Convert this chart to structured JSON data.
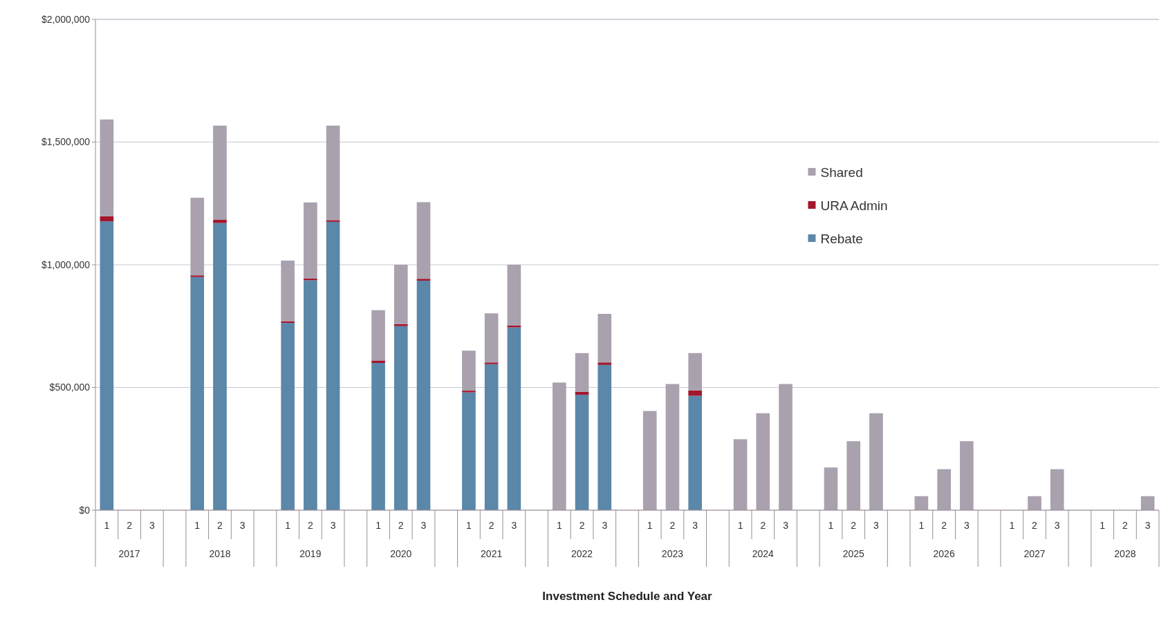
{
  "chart_data": {
    "type": "bar",
    "stacked": true,
    "xlabel": "Investment Schedule and Year",
    "categories": [
      "1",
      "2",
      "3",
      "1",
      "2",
      "3",
      "1",
      "2",
      "3",
      "1",
      "2",
      "3",
      "1",
      "2",
      "3",
      "1",
      "2",
      "3",
      "1",
      "2",
      "3",
      "1",
      "2",
      "3",
      "1",
      "2",
      "3",
      "1",
      "2",
      "3",
      "1",
      "2",
      "3",
      "1",
      "2",
      "3"
    ],
    "annotations": [
      "2017",
      "2018",
      "2019",
      "2020",
      "2021",
      "2022",
      "2023",
      "2024",
      "2025",
      "2026",
      "2027",
      "2028"
    ],
    "series": [
      {
        "name": "Rebate",
        "color": "#5b87a9",
        "values": [
          1177000,
          null,
          null,
          950000,
          1170000,
          null,
          763000,
          937000,
          1175000,
          600000,
          750000,
          935000,
          480000,
          595000,
          745000,
          null,
          470000,
          592000,
          null,
          null,
          466000,
          null,
          null,
          null,
          null,
          null,
          null,
          null,
          null,
          null,
          null,
          null,
          null,
          null,
          null,
          null
        ]
      },
      {
        "name": "URA Admin",
        "color": "#a3162c",
        "values": [
          21000,
          null,
          null,
          7000,
          13000,
          null,
          7000,
          7000,
          7000,
          10000,
          8000,
          8000,
          7000,
          7000,
          8000,
          null,
          12000,
          10000,
          null,
          null,
          22000,
          null,
          null,
          null,
          null,
          null,
          null,
          null,
          null,
          null,
          null,
          null,
          null,
          null,
          null,
          null
        ]
      },
      {
        "name": "Shared",
        "color": "#a9a1ae",
        "values": [
          394000,
          null,
          null,
          316000,
          384000,
          null,
          247000,
          310000,
          385000,
          205000,
          242000,
          312000,
          163000,
          200000,
          247000,
          520000,
          158000,
          198000,
          404000,
          514000,
          152000,
          289000,
          395000,
          514000,
          174000,
          281000,
          395000,
          57000,
          167000,
          281000,
          null,
          57000,
          167000,
          null,
          null,
          57000
        ]
      }
    ],
    "ylim": [
      0,
      2000000
    ],
    "yticks": [
      {
        "value": 0,
        "label": "$0"
      },
      {
        "value": 500000,
        "label": "$500,000"
      },
      {
        "value": 1000000,
        "label": "$1,000,000"
      },
      {
        "value": 1500000,
        "label": "$1,500,000"
      },
      {
        "value": 2000000,
        "label": "$2,000,000"
      }
    ],
    "grid": "y",
    "legend": "top right"
  }
}
